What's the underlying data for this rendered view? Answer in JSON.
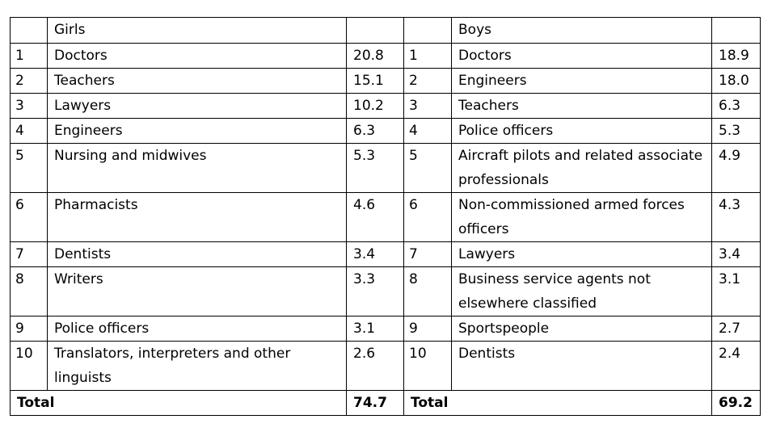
{
  "table": {
    "headers": {
      "girls": "Girls",
      "boys": "Boys"
    },
    "rows": [
      {
        "g_rank": "1",
        "g_job": "Doctors",
        "g_val": "20.8",
        "b_rank": "1",
        "b_job": "Doctors",
        "b_val": "18.9"
      },
      {
        "g_rank": "2",
        "g_job": "Teachers",
        "g_val": "15.1",
        "b_rank": "2",
        "b_job": "Engineers",
        "b_val": "18.0"
      },
      {
        "g_rank": "3",
        "g_job": "Lawyers",
        "g_val": "10.2",
        "b_rank": "3",
        "b_job": "Teachers",
        "b_val": "6.3"
      },
      {
        "g_rank": "4",
        "g_job": "Engineers",
        "g_val": "6.3",
        "b_rank": "4",
        "b_job": "Police officers",
        "b_val": "5.3"
      },
      {
        "g_rank": "5",
        "g_job": "Nursing and midwives",
        "g_val": "5.3",
        "b_rank": "5",
        "b_job": "Aircraft pilots and related associate professionals",
        "b_val": "4.9"
      },
      {
        "g_rank": "6",
        "g_job": "Pharmacists",
        "g_val": "4.6",
        "b_rank": "6",
        "b_job": "Non-commissioned armed forces officers",
        "b_val": "4.3"
      },
      {
        "g_rank": "7",
        "g_job": "Dentists",
        "g_val": "3.4",
        "b_rank": "7",
        "b_job": "Lawyers",
        "b_val": "3.4"
      },
      {
        "g_rank": "8",
        "g_job": "Writers",
        "g_val": "3.3",
        "b_rank": "8",
        "b_job": "Business service agents not elsewhere classified",
        "b_val": "3.1"
      },
      {
        "g_rank": "9",
        "g_job": "Police officers",
        "g_val": "3.1",
        "b_rank": "9",
        "b_job": "Sportspeople",
        "b_val": "2.7"
      },
      {
        "g_rank": "10",
        "g_job": "Translators, interpreters and other linguists",
        "g_val": "2.6",
        "b_rank": "10",
        "b_job": "Dentists",
        "b_val": "2.4"
      }
    ],
    "total": {
      "girls_label": "Total",
      "girls_value": "74.7",
      "boys_label": "Total",
      "boys_value": "69.2"
    }
  }
}
